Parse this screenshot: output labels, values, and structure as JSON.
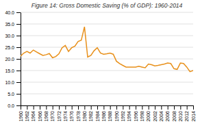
{
  "chart_data": {
    "type": "line",
    "title": "Figure 14: Gross Domestic Saving (% of GDP): 1960-2014",
    "x": [
      1960,
      1961,
      1962,
      1963,
      1964,
      1965,
      1966,
      1967,
      1968,
      1969,
      1970,
      1971,
      1972,
      1973,
      1974,
      1975,
      1976,
      1977,
      1978,
      1979,
      1980,
      1981,
      1982,
      1983,
      1984,
      1985,
      1986,
      1987,
      1988,
      1989,
      1990,
      1991,
      1992,
      1993,
      1994,
      1995,
      1996,
      1997,
      1998,
      1999,
      2000,
      2001,
      2002,
      2003,
      2004,
      2005,
      2006,
      2007,
      2008,
      2009,
      2010,
      2011,
      2012,
      2013,
      2014
    ],
    "values": [
      21.2,
      22.5,
      23.2,
      22.5,
      23.8,
      23.0,
      22.2,
      21.5,
      21.8,
      22.3,
      20.5,
      21.0,
      22.2,
      24.8,
      25.8,
      23.2,
      24.8,
      25.5,
      27.5,
      28.0,
      33.8,
      20.8,
      21.5,
      23.5,
      24.8,
      22.5,
      22.0,
      22.2,
      22.5,
      22.0,
      19.0,
      18.0,
      17.2,
      16.5,
      16.5,
      16.5,
      16.5,
      16.8,
      16.5,
      16.2,
      17.8,
      17.5,
      17.0,
      17.2,
      17.5,
      17.8,
      18.2,
      18.0,
      15.8,
      15.5,
      18.2,
      18.0,
      16.5,
      14.5,
      15.0
    ],
    "color": "#E8901A",
    "xlim": [
      1960,
      2014
    ],
    "xticks": [
      1960,
      1962,
      1964,
      1966,
      1968,
      1970,
      1972,
      1974,
      1976,
      1978,
      1980,
      1982,
      1984,
      1986,
      1988,
      1990,
      1992,
      1994,
      1996,
      1998,
      2000,
      2002,
      2004,
      2006,
      2008,
      2010,
      2012,
      2014
    ],
    "ylim": [
      0.0,
      40.0
    ],
    "yticks": [
      {
        "value": 0.0,
        "label": "0.0"
      },
      {
        "value": 5.0,
        "label": "5.0"
      },
      {
        "value": 10.0,
        "label": "10.0"
      },
      {
        "value": 15.0,
        "label": "15.0"
      },
      {
        "value": 20.0,
        "label": "20.0"
      },
      {
        "value": 25.0,
        "label": "25.0"
      },
      {
        "value": 30.0,
        "label": "30.0"
      },
      {
        "value": 35.0,
        "label": "35.0"
      },
      {
        "value": 40.0,
        "label": "40.0"
      }
    ],
    "grid": true
  }
}
